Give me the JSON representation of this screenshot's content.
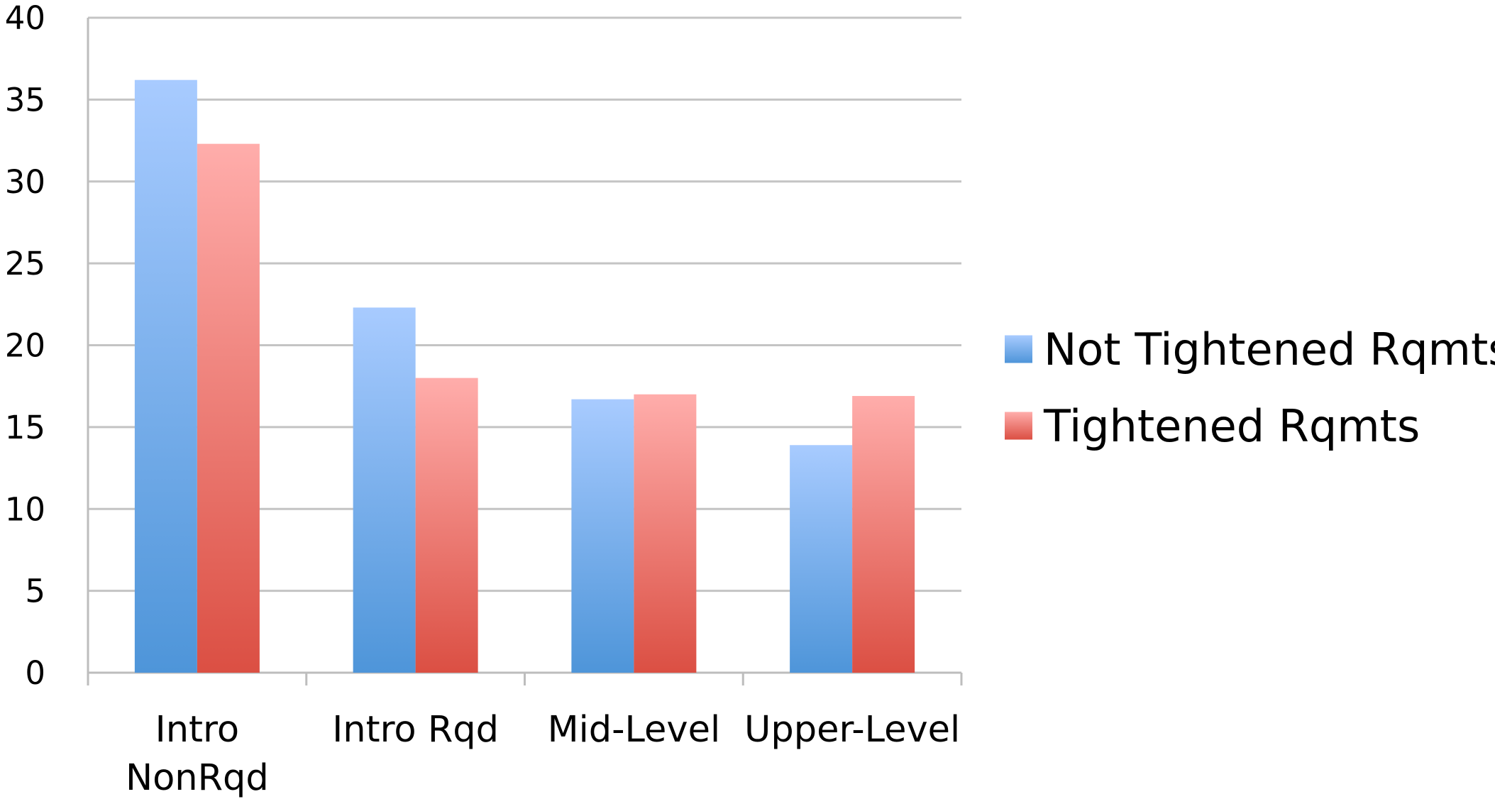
{
  "chart_data": {
    "type": "bar",
    "title": "",
    "xlabel": "",
    "ylabel": "",
    "categories": [
      [
        "Intro",
        "NonRqd"
      ],
      [
        "Intro Rqd"
      ],
      [
        "Mid-Level"
      ],
      [
        "Upper-Level"
      ]
    ],
    "series": [
      {
        "name": "Not Tightened Rqmts",
        "values": [
          36.2,
          22.3,
          16.7,
          13.9
        ],
        "color_top": "#a8cbff",
        "color_bottom": "#4e95d9"
      },
      {
        "name": "Tightened Rqmts",
        "values": [
          32.3,
          18.0,
          17.0,
          16.9
        ],
        "color_top": "#ffadab",
        "color_bottom": "#db4f43"
      }
    ],
    "ylim": [
      0,
      40
    ],
    "yticks": [
      "0",
      "5",
      "10",
      "15",
      "20",
      "25",
      "30",
      "35",
      "40"
    ],
    "grid": true,
    "legend_position": "right"
  }
}
